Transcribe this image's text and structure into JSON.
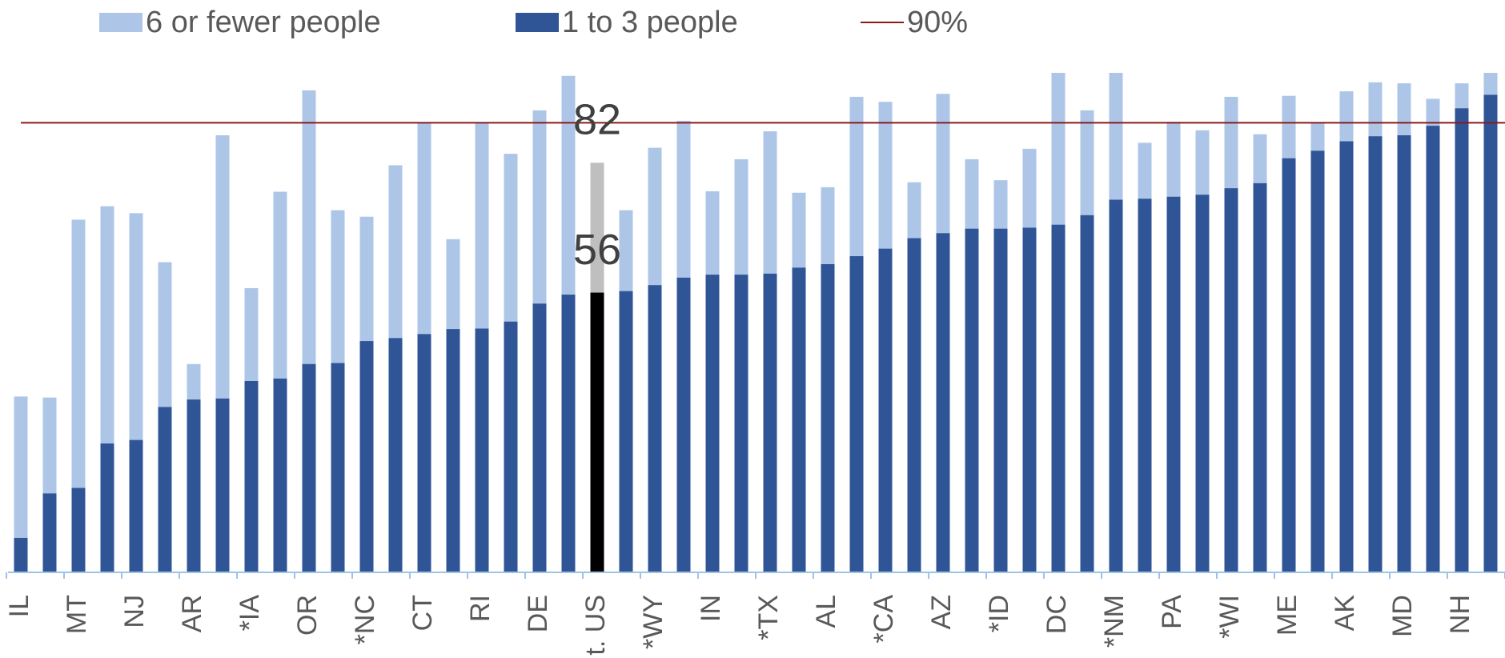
{
  "chart_data": {
    "type": "bar",
    "categories": [
      "IL",
      null,
      "MT",
      null,
      "NJ",
      null,
      "AR",
      null,
      "*IA",
      null,
      "OR",
      null,
      "*NC",
      null,
      "CT",
      null,
      "RI",
      null,
      "DE",
      null,
      "t. US",
      null,
      "*WY",
      null,
      "IN",
      null,
      "*TX",
      null,
      "AL",
      null,
      "*CA",
      null,
      "AZ",
      null,
      "*ID",
      null,
      "DC",
      null,
      "*NM",
      null,
      "PA",
      null,
      "*WI",
      null,
      "ME",
      null,
      "AK",
      null,
      "MD",
      null,
      "NH",
      null
    ],
    "series": [
      {
        "name": "6 or fewer people",
        "color": "#adc6e8",
        "highlight_color": "#bfbfbf",
        "values": [
          35.2,
          35.0,
          70.6,
          73.3,
          71.9,
          62.1,
          41.7,
          87.5,
          56.9,
          76.2,
          96.5,
          72.5,
          71.2,
          81.5,
          90,
          66.7,
          90,
          83.8,
          92.5,
          99.4,
          82,
          72.5,
          85,
          90.4,
          76.3,
          82.7,
          88.3,
          76,
          77.1,
          95.2,
          94.2,
          78.1,
          95.8,
          82.7,
          78.5,
          84.8,
          100,
          92.5,
          100,
          86,
          90.2,
          88.5,
          95.2,
          87.7,
          95.4,
          90,
          96.3,
          98.1,
          97.9,
          94.8,
          97.9,
          100
        ]
      },
      {
        "name": "1 to 3 people",
        "color": "#2f5597",
        "highlight_color": "#000000",
        "values": [
          6.9,
          15.8,
          16.9,
          25.8,
          26.5,
          33.1,
          34.6,
          34.8,
          38.3,
          38.8,
          41.7,
          41.9,
          46.3,
          46.9,
          47.7,
          48.7,
          48.8,
          50.2,
          53.8,
          55.6,
          56,
          56.3,
          57.5,
          59,
          59.6,
          59.6,
          59.8,
          61,
          61.7,
          63.3,
          64.8,
          66.9,
          67.9,
          68.8,
          68.8,
          69,
          69.6,
          71.5,
          74.6,
          74.8,
          75.2,
          75.6,
          76.9,
          77.9,
          82.9,
          84.4,
          86.3,
          87.3,
          87.5,
          89.4,
          92.9,
          95.6
        ]
      }
    ],
    "highlight_category": "t. US",
    "reference_line": {
      "name": "90%",
      "value": 90,
      "color": "#8b1a1a"
    },
    "ylim": [
      0,
      100
    ]
  }
}
